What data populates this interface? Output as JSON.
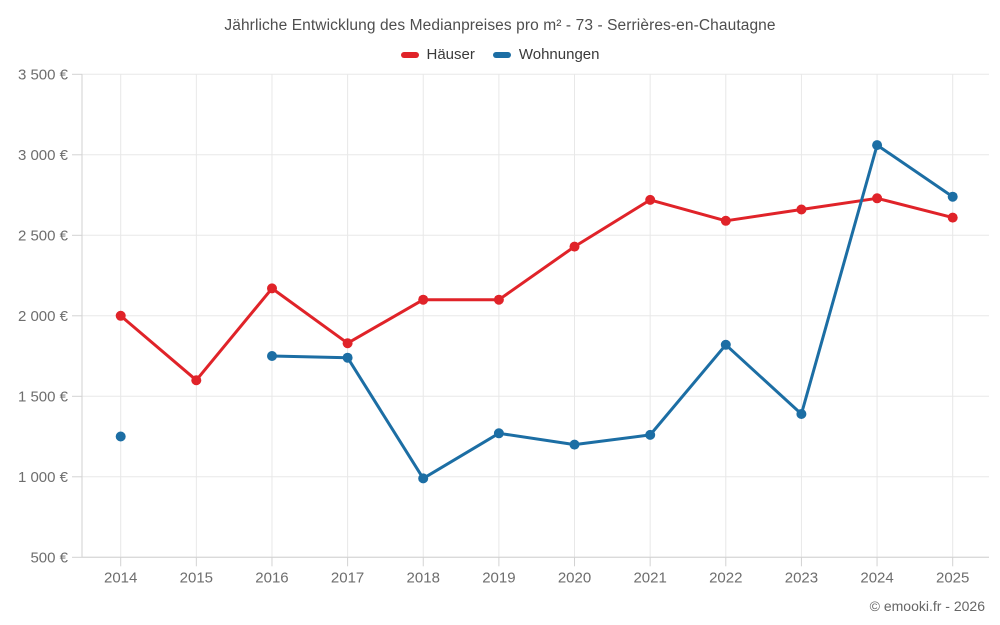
{
  "footer": {
    "credit": "© emooki.fr - 2026"
  },
  "axis_colors": {
    "gridline": "#e8e8e8",
    "axis_line": "#d2d2d2",
    "tick": "#d2d2d2",
    "label": "#6e6e6e"
  },
  "chart_data": {
    "type": "line",
    "title": "Jährliche Entwicklung des Medianpreises pro m² - 73 - Serrières-en-Chautagne",
    "categories": [
      "2014",
      "2015",
      "2016",
      "2017",
      "2018",
      "2019",
      "2020",
      "2021",
      "2022",
      "2023",
      "2024",
      "2025"
    ],
    "series": [
      {
        "name": "Häuser",
        "color": "#e02329",
        "values": [
          2000,
          1600,
          2170,
          1830,
          2100,
          2100,
          2430,
          2720,
          2590,
          2660,
          2730,
          2610
        ]
      },
      {
        "name": "Wohnungen",
        "color": "#1c6ea4",
        "values": [
          1250,
          null,
          1750,
          1740,
          990,
          1270,
          1200,
          1260,
          1820,
          1390,
          3060,
          2740
        ]
      }
    ],
    "xlabel": "",
    "ylabel": "",
    "ylim": [
      500,
      3500
    ],
    "ytick_values": [
      500,
      1000,
      1500,
      2000,
      2500,
      3000,
      3500
    ],
    "ytick_labels": [
      "500 €",
      "1 000 €",
      "1 500 €",
      "2 000 €",
      "2 500 €",
      "3 000 €",
      "3 500 €"
    ],
    "grid": true,
    "legend_position": "top",
    "currency": "€"
  }
}
